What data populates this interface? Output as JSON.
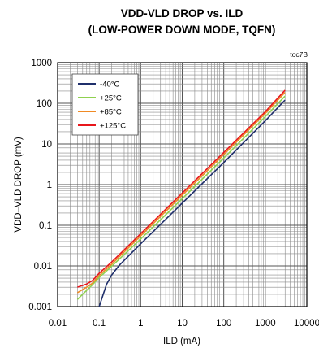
{
  "chart_data": {
    "type": "line",
    "title_line1": "VDD-VLD DROP vs. ILD",
    "title_line2": "(LOW-POWER DOWN MODE, TQFN)",
    "tag": "toc7B",
    "xlabel": "ILD (mA)",
    "ylabel": "VDD–VLD DROP  (mV)",
    "x_scale": "log",
    "y_scale": "log",
    "xlim": [
      0.01,
      10000
    ],
    "ylim": [
      0.001,
      1000
    ],
    "x_ticks": [
      0.01,
      0.1,
      1,
      10,
      100,
      1000,
      10000
    ],
    "x_tick_labels": [
      "0.01",
      "0.1",
      "1",
      "10",
      "100",
      "1000",
      "10000"
    ],
    "y_ticks": [
      0.001,
      0.01,
      0.1,
      1,
      10,
      100,
      1000
    ],
    "y_tick_labels": [
      "0.001",
      "0.01",
      "0.1",
      "1",
      "10",
      "100",
      "1000"
    ],
    "grid": true,
    "legend_position": "top-left",
    "series": [
      {
        "name": "-40°C",
        "color": "#1f2f6b",
        "x": [
          0.1,
          0.15,
          0.2,
          0.3,
          0.5,
          1,
          10,
          100,
          1000,
          3000
        ],
        "y": [
          0.001,
          0.0035,
          0.006,
          0.0102,
          0.0172,
          0.035,
          0.35,
          3.5,
          37,
          120
        ]
      },
      {
        "name": "+25°C",
        "color": "#8fd14f",
        "x": [
          0.03,
          0.05,
          0.07,
          0.1,
          0.2,
          0.3,
          1,
          10,
          100,
          1000,
          3000
        ],
        "y": [
          0.0015,
          0.0025,
          0.0035,
          0.0052,
          0.0098,
          0.0145,
          0.046,
          0.45,
          4.5,
          47,
          150
        ]
      },
      {
        "name": "+85°C",
        "color": "#f08a24",
        "x": [
          0.03,
          0.05,
          0.07,
          0.1,
          0.2,
          0.3,
          1,
          10,
          100,
          1000,
          3000
        ],
        "y": [
          0.0022,
          0.003,
          0.0038,
          0.0058,
          0.011,
          0.0165,
          0.055,
          0.55,
          5.5,
          56,
          185
        ]
      },
      {
        "name": "+125°C",
        "color": "#e8161b",
        "x": [
          0.03,
          0.05,
          0.07,
          0.1,
          0.2,
          0.3,
          1,
          10,
          100,
          1000,
          3000
        ],
        "y": [
          0.003,
          0.0036,
          0.0044,
          0.0066,
          0.0125,
          0.0186,
          0.062,
          0.62,
          6.2,
          62,
          210
        ]
      }
    ]
  }
}
